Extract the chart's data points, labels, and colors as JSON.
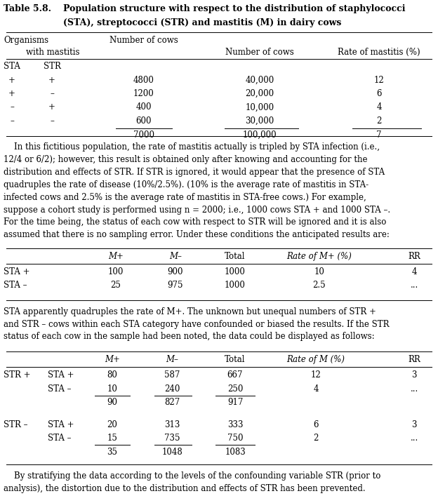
{
  "bg_color": "#ffffff",
  "text_color": "#000000",
  "title_label": "Table 5.8.",
  "title_rest": "Population structure with respect to the distribution of staphylococci",
  "title_line2": "(STA), streptococci (STR) and mastitis (M) in dairy cows",
  "paragraph1": "    In this fictitious population, the rate of mastitis actually is tripled by STA infection (i.e.,\n12/4 or 6/2); however, this result is obtained only after knowing and accounting for the\ndistribution and effects of STR. If STR is ignored, it would appear that the presence of STA\nquadruples the rate of disease (10%/2.5%). (10% is the average rate of mastitis in STA-\ninfected cows and 2.5% is the average rate of mastitis in STA-free cows.) For example,\nsuppose a cohort study is performed using n = 2000; i.e., 1000 cows STA + and 1000 STA –.\nFor the time being, the status of each cow with respect to STR will be ignored and it is also\nassumed that there is no sampling error. Under these conditions the anticipated results are:",
  "paragraph2": "STA apparently quadruples the rate of M+. The unknown but unequal numbers of STR +\nand STR – cows within each STA category have confounded or biased the results. If the STR\nstatus of each cow in the sample had been noted, the data could be displayed as follows:",
  "paragraph3": "    By stratifying the data according to the levels of the confounding variable STR (prior to\nanalysis), the distortion due to the distribution and effects of STR has been prevented.",
  "t1_rows": [
    [
      "+",
      "+",
      "4800",
      "40,000",
      "12"
    ],
    [
      "+",
      "–",
      "1200",
      "20,000",
      "6"
    ],
    [
      "–",
      "+",
      "400",
      "10,000",
      "4"
    ],
    [
      "–",
      "–",
      "600",
      "30,000",
      "2"
    ],
    [
      "",
      "",
      "7000",
      "100,000",
      "7"
    ]
  ],
  "t2_rows": [
    [
      "STA +",
      "100",
      "900",
      "1000",
      "10",
      "4"
    ],
    [
      "STA –",
      "25",
      "975",
      "1000",
      "2.5",
      "..."
    ]
  ],
  "t3_rows": [
    [
      "STR +",
      "STA +",
      "80",
      "587",
      "667",
      "12",
      "3"
    ],
    [
      "",
      "STA –",
      "10",
      "240",
      "250",
      "4",
      "..."
    ],
    [
      "",
      "",
      "90",
      "827",
      "917",
      "",
      ""
    ],
    [
      "STR –",
      "STA +",
      "20",
      "313",
      "333",
      "6",
      "3"
    ],
    [
      "",
      "STA –",
      "15",
      "735",
      "750",
      "2",
      "..."
    ],
    [
      "",
      "",
      "35",
      "1048",
      "1083",
      "",
      ""
    ]
  ]
}
